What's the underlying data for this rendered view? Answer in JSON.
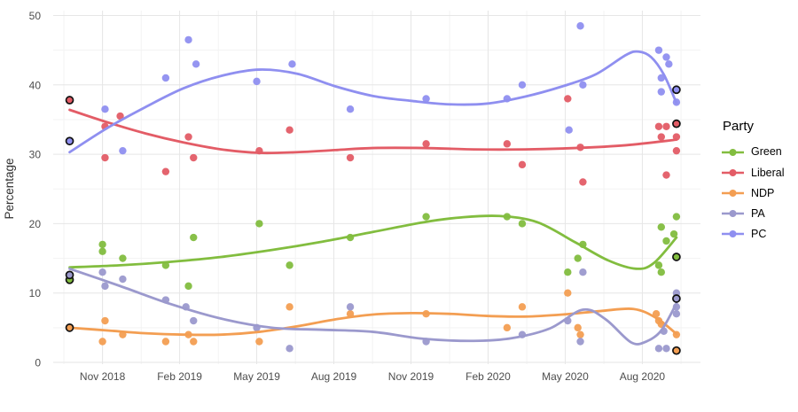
{
  "chart_data": {
    "type": "scatter",
    "title": "",
    "xlabel": "",
    "ylabel": "Percentage",
    "legend_title": "Party",
    "legend_position": "right",
    "grid": true,
    "ylim": [
      0,
      50
    ],
    "y_major_gridlines": [
      0,
      10,
      20,
      30,
      40,
      50
    ],
    "y_minor_gridlines": [
      5,
      15,
      25,
      35,
      45
    ],
    "x_unit": "months (0 = late Sep 2018, 24 = mid Sep 2020)",
    "x_ticks": [
      {
        "label": "Nov 2018",
        "m": 1.3
      },
      {
        "label": "Feb 2019",
        "m": 4.35
      },
      {
        "label": "May 2019",
        "m": 7.4
      },
      {
        "label": "Aug 2019",
        "m": 10.45
      },
      {
        "label": "Nov 2019",
        "m": 13.5
      },
      {
        "label": "Feb 2020",
        "m": 16.55
      },
      {
        "label": "May 2020",
        "m": 19.6
      },
      {
        "label": "Aug 2020",
        "m": 22.65
      }
    ],
    "x_minor_gridlines_m": [
      -0.23,
      2.83,
      5.88,
      8.93,
      11.98,
      15.03,
      18.08,
      21.13,
      24.18
    ],
    "outlined_points_note": "black-ringed points at the far left and far right of each series",
    "series": [
      {
        "name": "Green",
        "color": "#82BD3F",
        "points": [
          [
            1.3,
            17
          ],
          [
            1.3,
            16
          ],
          [
            2.1,
            15
          ],
          [
            3.8,
            14
          ],
          [
            4.7,
            11
          ],
          [
            4.9,
            18
          ],
          [
            7.5,
            20
          ],
          [
            8.7,
            14
          ],
          [
            11.1,
            18
          ],
          [
            14.1,
            21
          ],
          [
            17.3,
            21
          ],
          [
            17.9,
            20
          ],
          [
            19.7,
            13
          ],
          [
            20.1,
            15
          ],
          [
            20.3,
            17
          ],
          [
            23.3,
            14
          ],
          [
            23.4,
            19.5
          ],
          [
            23.4,
            13
          ],
          [
            23.6,
            17.5
          ],
          [
            23.9,
            18.5
          ],
          [
            24,
            21
          ]
        ],
        "outlined_points": [
          [
            0,
            11.9
          ],
          [
            24,
            15.2
          ]
        ],
        "trend": [
          [
            0,
            13.7
          ],
          [
            2,
            14.0
          ],
          [
            4,
            14.5
          ],
          [
            6,
            15.2
          ],
          [
            8,
            16.2
          ],
          [
            10,
            17.4
          ],
          [
            12,
            18.8
          ],
          [
            14,
            20.2
          ],
          [
            15.5,
            20.9
          ],
          [
            17,
            21.1
          ],
          [
            18.5,
            20.2
          ],
          [
            20,
            17.3
          ],
          [
            21.3,
            14.7
          ],
          [
            22.4,
            13.5
          ],
          [
            23.1,
            14.3
          ],
          [
            24,
            18.0
          ]
        ]
      },
      {
        "name": "Liberal",
        "color": "#E35C66",
        "points": [
          [
            1.4,
            34
          ],
          [
            1.4,
            29.5
          ],
          [
            2,
            35.5
          ],
          [
            3.8,
            27.5
          ],
          [
            4.7,
            32.5
          ],
          [
            4.9,
            29.5
          ],
          [
            7.5,
            30.5
          ],
          [
            8.7,
            33.5
          ],
          [
            11.1,
            29.5
          ],
          [
            14.1,
            31.5
          ],
          [
            17.3,
            31.5
          ],
          [
            17.9,
            28.5
          ],
          [
            19.7,
            38
          ],
          [
            20.2,
            31
          ],
          [
            20.3,
            26
          ],
          [
            23.3,
            34
          ],
          [
            23.4,
            32.5
          ],
          [
            23.6,
            34
          ],
          [
            23.6,
            27
          ],
          [
            24,
            32.5
          ],
          [
            24,
            30.5
          ]
        ],
        "outlined_points": [
          [
            0,
            37.8
          ],
          [
            24,
            34.4
          ]
        ],
        "trend": [
          [
            0,
            36.4
          ],
          [
            1.5,
            34.6
          ],
          [
            3,
            33.0
          ],
          [
            4.5,
            31.7
          ],
          [
            6,
            30.7
          ],
          [
            7.5,
            30.2
          ],
          [
            9,
            30.3
          ],
          [
            10.5,
            30.6
          ],
          [
            12,
            30.9
          ],
          [
            14,
            30.9
          ],
          [
            16,
            30.7
          ],
          [
            18,
            30.7
          ],
          [
            20,
            30.9
          ],
          [
            22,
            31.3
          ],
          [
            24,
            32.1
          ]
        ]
      },
      {
        "name": "NDP",
        "color": "#F39E52",
        "points": [
          [
            1.3,
            3
          ],
          [
            1.4,
            6
          ],
          [
            2.1,
            4
          ],
          [
            3.8,
            3
          ],
          [
            4.7,
            4
          ],
          [
            4.9,
            3
          ],
          [
            7.5,
            3
          ],
          [
            8.7,
            8
          ],
          [
            11.1,
            7
          ],
          [
            14.1,
            7
          ],
          [
            17.3,
            5
          ],
          [
            17.9,
            8
          ],
          [
            19.7,
            10
          ],
          [
            20.1,
            5
          ],
          [
            20.2,
            4
          ],
          [
            23.2,
            7
          ],
          [
            23.3,
            6
          ],
          [
            23.4,
            5.5
          ],
          [
            24,
            4
          ]
        ],
        "outlined_points": [
          [
            0,
            5.0
          ],
          [
            24,
            1.7
          ]
        ],
        "trend": [
          [
            0,
            5.0
          ],
          [
            1.5,
            4.6
          ],
          [
            3,
            4.2
          ],
          [
            4.5,
            4.0
          ],
          [
            6,
            4.0
          ],
          [
            7.5,
            4.4
          ],
          [
            9,
            5.2
          ],
          [
            10.5,
            6.2
          ],
          [
            12,
            6.9
          ],
          [
            13.5,
            7.1
          ],
          [
            15,
            7.0
          ],
          [
            16.5,
            6.7
          ],
          [
            18,
            6.6
          ],
          [
            19.5,
            6.9
          ],
          [
            21,
            7.4
          ],
          [
            22.3,
            7.7
          ],
          [
            23.2,
            6.4
          ],
          [
            24,
            4.1
          ]
        ]
      },
      {
        "name": "PA",
        "color": "#9B99CD",
        "points": [
          [
            1.3,
            13
          ],
          [
            1.4,
            11
          ],
          [
            2.1,
            12
          ],
          [
            3.8,
            9
          ],
          [
            4.6,
            8
          ],
          [
            4.9,
            6
          ],
          [
            7.4,
            5
          ],
          [
            8.7,
            2
          ],
          [
            11.1,
            8
          ],
          [
            14.1,
            3
          ],
          [
            17.9,
            4
          ],
          [
            19.7,
            6
          ],
          [
            20.2,
            3
          ],
          [
            20.3,
            13
          ],
          [
            23.3,
            2
          ],
          [
            23.5,
            4.5
          ],
          [
            23.6,
            2
          ],
          [
            24,
            10
          ],
          [
            24,
            8
          ],
          [
            24,
            7
          ]
        ],
        "outlined_points": [
          [
            0,
            12.6
          ],
          [
            24,
            9.2
          ]
        ],
        "trend": [
          [
            0,
            13.5
          ],
          [
            2,
            11.0
          ],
          [
            4,
            8.4
          ],
          [
            6,
            6.3
          ],
          [
            8,
            5.0
          ],
          [
            10,
            4.7
          ],
          [
            12,
            4.4
          ],
          [
            14,
            3.4
          ],
          [
            16,
            3.1
          ],
          [
            17.5,
            3.5
          ],
          [
            19,
            4.9
          ],
          [
            20.3,
            7.6
          ],
          [
            21.2,
            6.2
          ],
          [
            22.2,
            2.9
          ],
          [
            22.8,
            3.0
          ],
          [
            23.4,
            4.6
          ],
          [
            24,
            8.5
          ]
        ]
      },
      {
        "name": "PC",
        "color": "#8F8FF0",
        "points": [
          [
            1.4,
            36.5
          ],
          [
            2.1,
            30.5
          ],
          [
            3.8,
            41
          ],
          [
            4.7,
            46.5
          ],
          [
            5,
            43
          ],
          [
            7.4,
            40.5
          ],
          [
            8.8,
            43
          ],
          [
            11.1,
            36.5
          ],
          [
            14.1,
            38
          ],
          [
            17.3,
            38
          ],
          [
            17.9,
            40
          ],
          [
            19.75,
            33.5
          ],
          [
            20.2,
            48.5
          ],
          [
            20.3,
            40
          ],
          [
            23.3,
            45
          ],
          [
            23.4,
            41
          ],
          [
            23.4,
            39
          ],
          [
            23.6,
            44
          ],
          [
            23.7,
            43
          ],
          [
            24,
            37.5
          ]
        ],
        "outlined_points": [
          [
            0,
            31.9
          ],
          [
            24,
            39.3
          ]
        ],
        "trend": [
          [
            0,
            30.3
          ],
          [
            1.5,
            33.8
          ],
          [
            3,
            36.8
          ],
          [
            4.5,
            39.5
          ],
          [
            6,
            41.3
          ],
          [
            7.5,
            42.2
          ],
          [
            9,
            41.6
          ],
          [
            10.5,
            39.8
          ],
          [
            12,
            38.4
          ],
          [
            13.5,
            37.7
          ],
          [
            15,
            37.2
          ],
          [
            16.5,
            37.3
          ],
          [
            18,
            38.3
          ],
          [
            19.5,
            39.8
          ],
          [
            20.8,
            41.5
          ],
          [
            22,
            44.3
          ],
          [
            22.5,
            44.8
          ],
          [
            23,
            44.0
          ],
          [
            23.5,
            41.5
          ],
          [
            24,
            37.4
          ]
        ]
      }
    ]
  },
  "colors": {
    "background": "#ffffff",
    "gridline_major": "#e6e6e6",
    "gridline_minor": "#f3f3f3",
    "axis_text": "#4d4d4d",
    "axis_title": "#303030",
    "outline_ring": "#111111"
  }
}
